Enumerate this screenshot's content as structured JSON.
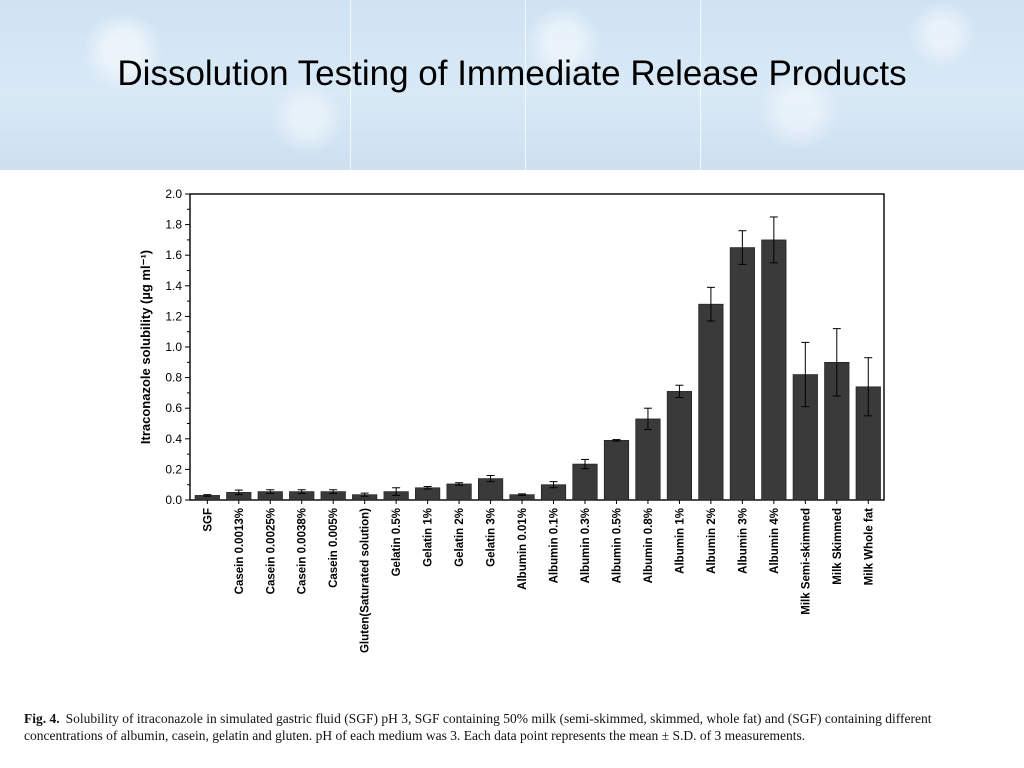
{
  "slide": {
    "title": "Dissolution Testing of Immediate Release Products"
  },
  "caption": {
    "label": "Fig. 4.",
    "text": "Solubility of itraconazole in simulated gastric fluid (SGF) pH 3, SGF containing 50% milk (semi-skimmed, skimmed, whole fat) and (SGF) containing different concentrations of albumin, casein, gelatin and gluten. pH of each medium was 3. Each data point represents the mean ± S.D. of 3 measurements."
  },
  "colors": {
    "bar": "#3a3a3a",
    "axis": "#000000",
    "header_bg": "#d3e5f4"
  },
  "chart_data": {
    "type": "bar",
    "title": "",
    "xlabel": "",
    "ylabel": "Itraconazole solubility (µg ml⁻¹)",
    "ylim": [
      0,
      2.0
    ],
    "yticks": [
      "0.0",
      "0.2",
      "0.4",
      "0.6",
      "0.8",
      "1.0",
      "1.2",
      "1.4",
      "1.6",
      "1.8",
      "2.0"
    ],
    "grid": false,
    "error_bars": true,
    "categories": [
      "SGF",
      "Casein 0.0013%",
      "Casein 0.0025%",
      "Casein  0.0038%",
      "Casein 0.005%",
      "Gluten(Saturated solution)",
      "Gelatin 0.5%",
      "Gelatin 1%",
      "Gelatin 2%",
      "Gelatin 3%",
      "Albumin  0.01%",
      "Albumin 0.1%",
      "Albumin 0.3%",
      "Albumin 0.5%",
      "Albumin 0.8%",
      "Albumin 1%",
      "Albumin 2%",
      "Albumin 3%",
      "Albumin 4%",
      "Milk Semi-skimmed",
      "Milk Skimmed",
      "Milk Whole fat"
    ],
    "values": [
      0.03,
      0.05,
      0.055,
      0.055,
      0.055,
      0.035,
      0.055,
      0.08,
      0.105,
      0.14,
      0.035,
      0.1,
      0.235,
      0.39,
      0.53,
      0.71,
      1.28,
      1.65,
      1.7,
      0.82,
      0.9,
      0.74
    ],
    "errors": [
      0.005,
      0.015,
      0.012,
      0.012,
      0.012,
      0.01,
      0.025,
      0.008,
      0.008,
      0.02,
      0.005,
      0.02,
      0.03,
      0.005,
      0.07,
      0.04,
      0.11,
      0.11,
      0.15,
      0.21,
      0.22,
      0.19
    ]
  }
}
